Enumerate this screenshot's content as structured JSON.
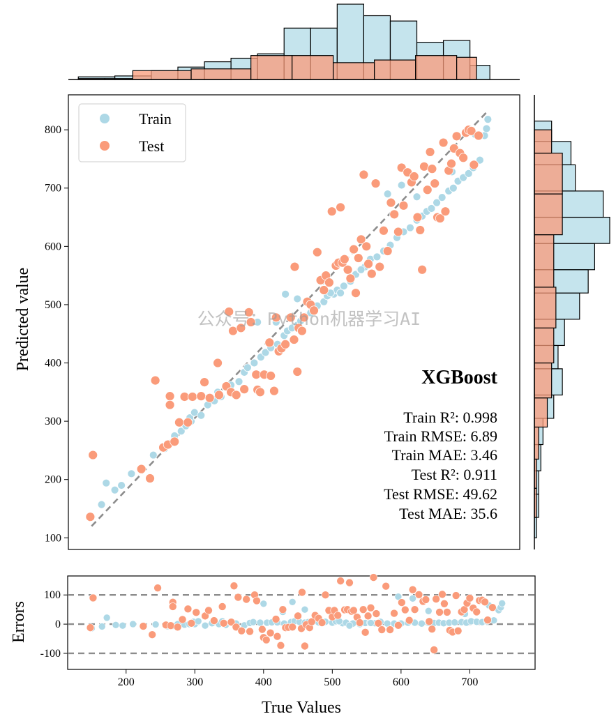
{
  "watermark": "公众号：Python机器学习AI",
  "colors": {
    "train": "#add8e6",
    "test": "#fa9b7a",
    "diag": "#8c8c8c"
  },
  "chart_data": [
    {
      "type": "scatter",
      "xlabel": "",
      "ylabel": "Predicted value",
      "xlim": [
        115,
        795
      ],
      "ylim": [
        80,
        860
      ],
      "yticks": [
        100,
        200,
        300,
        400,
        500,
        600,
        700,
        800
      ],
      "legend": {
        "placement": "top-left",
        "entries": [
          "Train",
          "Test"
        ]
      },
      "model_title": "XGBoost",
      "metrics": [
        "Train R²: 0.998",
        "Train RMSE: 6.89",
        "Train MAE: 3.46",
        "Test R²: 0.911",
        "Test RMSE: 49.62",
        "Test MAE: 35.6"
      ],
      "identity_line": [
        [
          150,
          120
        ],
        [
          745,
          830
        ]
      ],
      "series": [
        {
          "name": "Train",
          "points": [
            [
              150,
              136
            ],
            [
              172,
              194
            ],
            [
              165,
              157
            ],
            [
              185,
              182
            ],
            [
              195,
              190
            ],
            [
              210,
              210
            ],
            [
              225,
              218
            ],
            [
              243,
              242
            ],
            [
              260,
              253
            ],
            [
              268,
              262
            ],
            [
              275,
              275
            ],
            [
              285,
              283
            ],
            [
              292,
              292
            ],
            [
              300,
              300
            ],
            [
              298,
              306
            ],
            [
              305,
              315
            ],
            [
              315,
              310
            ],
            [
              325,
              328
            ],
            [
              335,
              335
            ],
            [
              340,
              350
            ],
            [
              345,
              342
            ],
            [
              352,
              358
            ],
            [
              360,
              362
            ],
            [
              372,
              368
            ],
            [
              380,
              384
            ],
            [
              385,
              392
            ],
            [
              395,
              400
            ],
            [
              405,
              410
            ],
            [
              412,
              418
            ],
            [
              420,
              426
            ],
            [
              430,
              432
            ],
            [
              440,
              447
            ],
            [
              445,
              455
            ],
            [
              452,
              460
            ],
            [
              460,
              465
            ],
            [
              465,
              472
            ],
            [
              472,
              480
            ],
            [
              480,
              486
            ],
            [
              490,
              498
            ],
            [
              500,
              505
            ],
            [
              505,
              515
            ],
            [
              515,
              518
            ],
            [
              520,
              525
            ],
            [
              530,
              532
            ],
            [
              540,
              540
            ],
            [
              548,
              552
            ],
            [
              555,
              560
            ],
            [
              562,
              565
            ],
            [
              570,
              578
            ],
            [
              580,
              582
            ],
            [
              590,
              592
            ],
            [
              600,
              602
            ],
            [
              610,
              615
            ],
            [
              620,
              625
            ],
            [
              630,
              632
            ],
            [
              640,
              645
            ],
            [
              648,
              652
            ],
            [
              655,
              660
            ],
            [
              662,
              665
            ],
            [
              670,
              675
            ],
            [
              678,
              684
            ],
            [
              688,
              695
            ],
            [
              695,
              700
            ],
            [
              702,
              712
            ],
            [
              710,
              718
            ],
            [
              718,
              725
            ],
            [
              725,
              735
            ],
            [
              735,
              748
            ],
            [
              742,
              790
            ],
            [
              745,
              802
            ],
            [
              747,
              818
            ],
            [
              428,
              470
            ],
            [
              442,
              518
            ],
            [
              400,
              470
            ],
            [
              460,
              510
            ],
            [
              510,
              520
            ],
            [
              525,
              520
            ],
            [
              556,
              560
            ],
            [
              596,
              690
            ],
            [
              617,
              705
            ],
            [
              640,
              685
            ],
            [
              688,
              728
            ],
            [
              693,
              728
            ],
            [
              728,
              792
            ]
          ]
        },
        {
          "name": "Test",
          "points": [
            [
              148,
              136
            ],
            [
              152,
              242
            ],
            [
              225,
              218
            ],
            [
              238,
              202
            ],
            [
              246,
              370
            ],
            [
              258,
              255
            ],
            [
              265,
              260
            ],
            [
              268,
              343
            ],
            [
              268,
              328
            ],
            [
              275,
              265
            ],
            [
              282,
              298
            ],
            [
              290,
              342
            ],
            [
              295,
              298
            ],
            [
              302,
              342
            ],
            [
              315,
              343
            ],
            [
              320,
              367
            ],
            [
              328,
              340
            ],
            [
              340,
              400
            ],
            [
              342,
              345
            ],
            [
              353,
              360
            ],
            [
              357,
              488
            ],
            [
              360,
              350
            ],
            [
              363,
              455
            ],
            [
              368,
              345
            ],
            [
              375,
              460
            ],
            [
              380,
              355
            ],
            [
              387,
              487
            ],
            [
              390,
              470
            ],
            [
              398,
              380
            ],
            [
              400,
              354
            ],
            [
              404,
              350
            ],
            [
              410,
              380
            ],
            [
              418,
              435
            ],
            [
              420,
              378
            ],
            [
              425,
              352
            ],
            [
              428,
              478
            ],
            [
              432,
              420
            ],
            [
              436,
              425
            ],
            [
              442,
              432
            ],
            [
              450,
              478
            ],
            [
              455,
              440
            ],
            [
              456,
              565
            ],
            [
              460,
              385
            ],
            [
              462,
              460
            ],
            [
              467,
              455
            ],
            [
              470,
              478
            ],
            [
              475,
              505
            ],
            [
              480,
              500
            ],
            [
              485,
              490
            ],
            [
              490,
              590
            ],
            [
              495,
              542
            ],
            [
              500,
              525
            ],
            [
              503,
              550
            ],
            [
              508,
              538
            ],
            [
              512,
              660
            ],
            [
              518,
              567
            ],
            [
              522,
              572
            ],
            [
              525,
              667
            ],
            [
              528,
              572
            ],
            [
              531,
              578
            ],
            [
              536,
              560
            ],
            [
              540,
              545
            ],
            [
              545,
              595
            ],
            [
              548,
              520
            ],
            [
              552,
              580
            ],
            [
              556,
              612
            ],
            [
              560,
              723
            ],
            [
              564,
              600
            ],
            [
              567,
              570
            ],
            [
              572,
              553
            ],
            [
              578,
              708
            ],
            [
              584,
              565
            ],
            [
              590,
              627
            ],
            [
              596,
              592
            ],
            [
              601,
              675
            ],
            [
              606,
              655
            ],
            [
              612,
              625
            ],
            [
              617,
              735
            ],
            [
              620,
              670
            ],
            [
              626,
              727
            ],
            [
              632,
              710
            ],
            [
              636,
              720
            ],
            [
              641,
              650
            ],
            [
              645,
              628
            ],
            [
              648,
              560
            ],
            [
              651,
              737
            ],
            [
              656,
              697
            ],
            [
              660,
              762
            ],
            [
              663,
              733
            ],
            [
              667,
              708
            ],
            [
              671,
              650
            ],
            [
              675,
              648
            ],
            [
              680,
              778
            ],
            [
              683,
              660
            ],
            [
              688,
              730
            ],
            [
              692,
              742
            ],
            [
              696,
              768
            ],
            [
              700,
              789
            ],
            [
              705,
              760
            ],
            [
              710,
              752
            ],
            [
              714,
              795
            ],
            [
              718,
              800
            ],
            [
              722,
              798
            ],
            [
              726,
              740
            ],
            [
              733,
              790
            ]
          ]
        }
      ]
    },
    {
      "type": "bar",
      "orientation": "vertical",
      "description_role": "top marginal histogram of true values",
      "series": [
        {
          "name": "Train",
          "bins": [
            [
              130,
              185,
              3
            ],
            [
              185,
              240,
              4
            ],
            [
              240,
              280,
              10
            ],
            [
              280,
              320,
              14
            ],
            [
              320,
              360,
              20
            ],
            [
              360,
              400,
              24
            ],
            [
              400,
              440,
              29
            ],
            [
              440,
              480,
              58
            ],
            [
              480,
              520,
              58
            ],
            [
              520,
              560,
              85
            ],
            [
              560,
              600,
              72
            ],
            [
              600,
              640,
              66
            ],
            [
              640,
              680,
              42
            ],
            [
              680,
              720,
              44
            ],
            [
              720,
              750,
              16
            ]
          ]
        },
        {
          "name": "Test",
          "bins": [
            [
              130,
              170,
              1
            ],
            [
              170,
              212,
              1
            ],
            [
              212,
              300,
              10
            ],
            [
              300,
              390,
              12
            ],
            [
              390,
              452,
              27
            ],
            [
              452,
              514,
              27
            ],
            [
              514,
              576,
              19
            ],
            [
              576,
              638,
              22
            ],
            [
              638,
              700,
              27
            ],
            [
              700,
              730,
              25
            ]
          ]
        }
      ]
    },
    {
      "type": "bar",
      "orientation": "horizontal",
      "description_role": "right marginal histogram of predicted values",
      "series": [
        {
          "name": "Train",
          "bins": [
            [
              100,
              135,
              1
            ],
            [
              135,
              175,
              2
            ],
            [
              175,
              215,
              2
            ],
            [
              215,
              260,
              3
            ],
            [
              260,
              305,
              4
            ],
            [
              305,
              345,
              9
            ],
            [
              345,
              390,
              13
            ],
            [
              390,
              430,
              11
            ],
            [
              430,
              475,
              14
            ],
            [
              475,
              520,
              21
            ],
            [
              520,
              560,
              25
            ],
            [
              560,
              605,
              28
            ],
            [
              605,
              650,
              35
            ],
            [
              650,
              695,
              32
            ],
            [
              695,
              740,
              19
            ],
            [
              740,
              780,
              17
            ],
            [
              780,
              815,
              8
            ]
          ]
        },
        {
          "name": "Test",
          "bins": [
            [
              135,
              185,
              1
            ],
            [
              185,
              235,
              1
            ],
            [
              235,
              290,
              2
            ],
            [
              290,
              340,
              6
            ],
            [
              340,
              400,
              8
            ],
            [
              400,
              460,
              9
            ],
            [
              460,
              530,
              10
            ],
            [
              530,
              620,
              9
            ],
            [
              620,
              690,
              13
            ],
            [
              690,
              760,
              13
            ],
            [
              760,
              800,
              8
            ]
          ]
        }
      ]
    },
    {
      "type": "scatter",
      "xlabel": "True Values",
      "ylabel": "Errors",
      "xlim": [
        115,
        795
      ],
      "ylim": [
        -155,
        165
      ],
      "xticks": [
        200,
        300,
        400,
        500,
        600,
        700
      ],
      "yticks": [
        -100,
        0,
        100
      ],
      "reference_lines": [
        -100,
        0,
        100
      ]
    }
  ]
}
